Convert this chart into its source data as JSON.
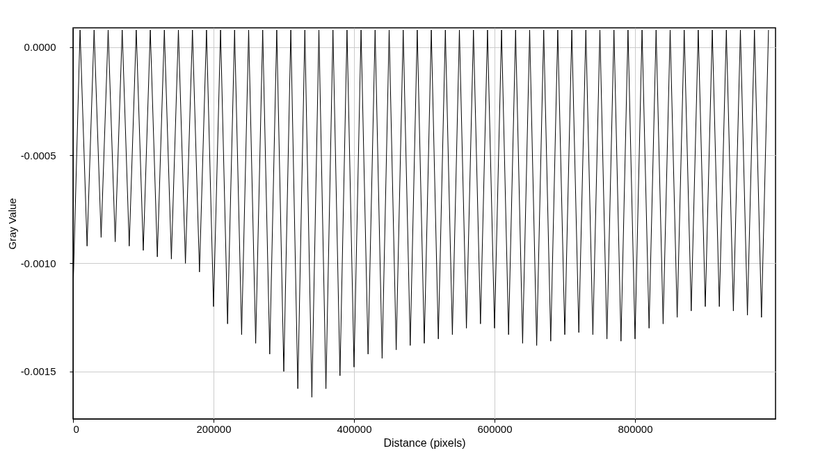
{
  "chart_data": {
    "type": "line",
    "xlabel": "Distance (pixels)",
    "ylabel": "Gray Value",
    "x": [
      0,
      10000,
      20000,
      30000,
      40000,
      50000,
      60000,
      70000,
      80000,
      90000,
      100000,
      110000,
      120000,
      130000,
      140000,
      150000,
      160000,
      170000,
      180000,
      190000,
      200000,
      210000,
      220000,
      230000,
      240000,
      250000,
      260000,
      270000,
      280000,
      290000,
      300000,
      310000,
      320000,
      330000,
      340000,
      350000,
      360000,
      370000,
      380000,
      390000,
      400000,
      410000,
      420000,
      430000,
      440000,
      450000,
      460000,
      470000,
      480000,
      490000,
      500000,
      510000,
      520000,
      530000,
      540000,
      550000,
      560000,
      570000,
      580000,
      590000,
      600000,
      610000,
      620000,
      630000,
      640000,
      650000,
      660000,
      670000,
      680000,
      690000,
      700000,
      710000,
      720000,
      730000,
      740000,
      750000,
      760000,
      770000,
      780000,
      790000,
      800000,
      810000,
      820000,
      830000,
      840000,
      850000,
      860000,
      870000,
      880000,
      890000,
      900000,
      910000,
      920000,
      930000,
      940000,
      950000,
      960000,
      970000,
      980000,
      990000
    ],
    "series": [
      {
        "color": "#000000",
        "values": [
          -0.00113,
          8e-05,
          -0.00092,
          8e-05,
          -0.00088,
          8e-05,
          -0.0009,
          8e-05,
          -0.00092,
          8e-05,
          -0.00094,
          8e-05,
          -0.00097,
          8e-05,
          -0.00098,
          8e-05,
          -0.001,
          8e-05,
          -0.00104,
          8e-05,
          -0.0012,
          8e-05,
          -0.00128,
          8e-05,
          -0.00133,
          8e-05,
          -0.00137,
          8e-05,
          -0.00142,
          8e-05,
          -0.0015,
          8e-05,
          -0.00158,
          8e-05,
          -0.00162,
          8e-05,
          -0.00158,
          8e-05,
          -0.00152,
          8e-05,
          -0.00148,
          8e-05,
          -0.00142,
          8e-05,
          -0.00144,
          8e-05,
          -0.0014,
          8e-05,
          -0.00138,
          8e-05,
          -0.00137,
          8e-05,
          -0.00135,
          8e-05,
          -0.00133,
          8e-05,
          -0.0013,
          8e-05,
          -0.00128,
          8e-05,
          -0.0013,
          8e-05,
          -0.00133,
          8e-05,
          -0.00137,
          8e-05,
          -0.00138,
          8e-05,
          -0.00136,
          8e-05,
          -0.00133,
          8e-05,
          -0.00132,
          8e-05,
          -0.00133,
          8e-05,
          -0.00135,
          8e-05,
          -0.00136,
          8e-05,
          -0.00135,
          8e-05,
          -0.0013,
          8e-05,
          -0.00128,
          8e-05,
          -0.00125,
          8e-05,
          -0.00122,
          8e-05,
          -0.0012,
          8e-05,
          -0.0012,
          8e-05,
          -0.00122,
          8e-05,
          -0.00124,
          8e-05,
          -0.00125,
          8e-05
        ]
      }
    ],
    "xlim": [
      0,
      1000000
    ],
    "xticks": [
      0,
      200000,
      400000,
      600000,
      800000
    ],
    "ylim": [
      -0.00172,
      9e-05
    ],
    "yticks": [
      {
        "value": 0,
        "label": "0.0000"
      },
      {
        "value": -0.0005,
        "label": "-0.0005"
      },
      {
        "value": -0.001,
        "label": "-0.0010"
      },
      {
        "value": -0.0015,
        "label": "-0.0015"
      }
    ],
    "grid": true,
    "marker": "none",
    "line_style": "solid"
  }
}
